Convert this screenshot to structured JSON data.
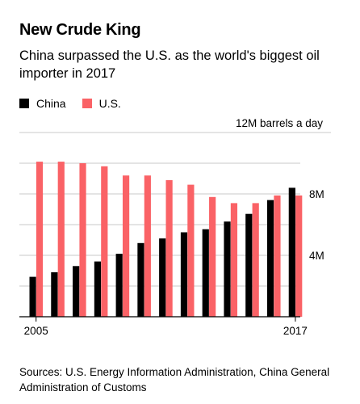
{
  "header": {
    "title": "New Crude King",
    "subtitle": "China surpassed the U.S. as the world's biggest oil importer in 2017"
  },
  "footer": {
    "source": "Sources: U.S. Energy Information Administration, China General Administration of Customs"
  },
  "colors": {
    "china": "#000000",
    "us": "#fa6266",
    "grid": "#c8c8c8",
    "axis": "#000000"
  },
  "chart_data": {
    "type": "bar",
    "categories": [
      "2005",
      "2006",
      "2007",
      "2008",
      "2009",
      "2010",
      "2011",
      "2012",
      "2013",
      "2014",
      "2015",
      "2016",
      "2017"
    ],
    "series": [
      {
        "name": "China",
        "values": [
          2.6,
          2.9,
          3.3,
          3.6,
          4.1,
          4.8,
          5.1,
          5.5,
          5.7,
          6.2,
          6.7,
          7.6,
          8.4
        ]
      },
      {
        "name": "U.S.",
        "values": [
          10.1,
          10.1,
          10.0,
          9.8,
          9.2,
          9.2,
          8.9,
          8.6,
          7.8,
          7.4,
          7.4,
          7.9,
          7.9
        ]
      }
    ],
    "x_tick_labels": [
      "2005",
      "2017"
    ],
    "y_tick_labels": [
      {
        "value": 4,
        "label": "4M"
      },
      {
        "value": 8,
        "label": "8M"
      },
      {
        "value": 12,
        "label": "12M barrels a day"
      }
    ],
    "ylim": [
      0,
      12
    ],
    "grid": true,
    "legend": "top-left"
  }
}
